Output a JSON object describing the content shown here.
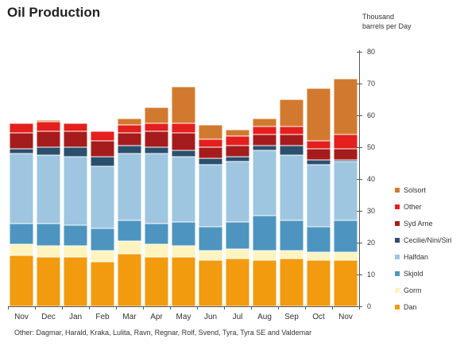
{
  "chart_data": {
    "type": "bar",
    "stacked": true,
    "title": "Oil Production",
    "unit_label": "Thousand\nbarrels per Day",
    "categories": [
      "Nov",
      "Dec",
      "Jan",
      "Feb",
      "Mar",
      "Apr",
      "May",
      "Jun",
      "Jul",
      "Aug",
      "Sep",
      "Oct",
      "Nov"
    ],
    "ylim": [
      0,
      80
    ],
    "yticks": [
      0,
      10,
      20,
      30,
      40,
      50,
      60,
      70,
      80
    ],
    "y_axis_position": "right",
    "legend_position": "right",
    "series": [
      {
        "name": "Dan",
        "color": "#f29b0e",
        "values": [
          16,
          15.5,
          15.5,
          14,
          16.5,
          15.5,
          15.5,
          14.5,
          15,
          14.5,
          15,
          14.5,
          14.5
        ]
      },
      {
        "name": "Gorm",
        "color": "#fff3c0",
        "values": [
          3.5,
          3.5,
          3.5,
          3.5,
          4,
          4,
          3.5,
          3,
          3,
          3,
          2.5,
          2.5,
          2.5
        ]
      },
      {
        "name": "Skjold",
        "color": "#4d95c0",
        "values": [
          6.5,
          7,
          6.5,
          7,
          6.5,
          6.5,
          7.5,
          7.5,
          8.5,
          11,
          9.5,
          8,
          10
        ]
      },
      {
        "name": "Halfdan",
        "color": "#9ec6e0",
        "values": [
          22,
          21.5,
          21.5,
          19.5,
          21,
          22,
          20.5,
          19.5,
          19,
          20.5,
          20.5,
          19.5,
          18.5
        ]
      },
      {
        "name": "Cecilie/Nini/Siri",
        "color": "#2c4f6e",
        "values": [
          1.5,
          2.5,
          3,
          3,
          2.5,
          2,
          2,
          2,
          1.5,
          1.5,
          3,
          1.5,
          0.5
        ]
      },
      {
        "name": "Syd Arne",
        "color": "#a61c1c",
        "values": [
          5,
          5,
          5,
          5,
          4,
          5,
          5.5,
          3.5,
          3.5,
          3.5,
          3.5,
          3.5,
          3.5
        ]
      },
      {
        "name": "Other",
        "color": "#e41f1d",
        "values": [
          3,
          3,
          2.5,
          3,
          2.5,
          2.5,
          3,
          2.5,
          3,
          2.5,
          2.5,
          2.5,
          4.5
        ]
      },
      {
        "name": "Solsort",
        "color": "#d17a2f",
        "values": [
          0,
          0.5,
          0,
          0,
          2,
          5,
          11.5,
          4.5,
          2,
          2.5,
          8.5,
          16.5,
          17.5
        ]
      }
    ]
  },
  "footnote": "Other: Dagmar, Harald, Kraka, Lulita, Ravn, Regnar, Rolf, Svend, Tyra, Tyra SE and Valdemar"
}
